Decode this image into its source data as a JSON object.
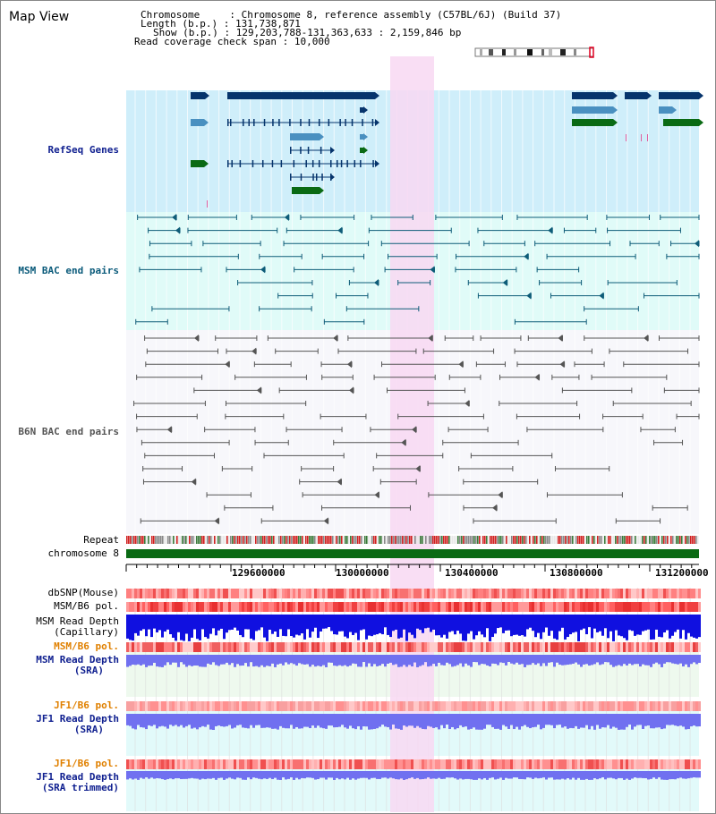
{
  "view_title": "Map View",
  "info": {
    "chromosome_label": "Chromosome",
    "chromosome_value": "Chromosome 8, reference assembly (C57BL/6J) (Build 37)",
    "length_label": "Length (b.p.)",
    "length_value": "131,738,871",
    "show_label": "Show (b.p.)",
    "show_value": "129,203,788-131,363,633 : 2,159,846 bp",
    "coverage_label": "Read coverage check span",
    "coverage_value": "10,000"
  },
  "tracks": {
    "refseq": "RefSeq Genes",
    "msm_bac": "MSM BAC end pairs",
    "b6n_bac": "B6N BAC end pairs",
    "repeat": "Repeat",
    "chromosome": "chromosome 8",
    "dbsnp": "dbSNP(Mouse)",
    "msm_b6_pol_1": "MSM/B6 pol.",
    "msm_read_depth_cap_1": "MSM Read Depth",
    "msm_read_depth_cap_2": "(Capillary)",
    "msm_b6_pol_2": "MSM/B6 pol.",
    "msm_read_depth_sra_1": "MSM Read Depth",
    "msm_read_depth_sra_2": "(SRA)",
    "jf1_b6_pol_1": "JF1/B6 pol.",
    "jf1_read_depth_1": "JF1 Read Depth",
    "jf1_read_depth_2": "(SRA)",
    "jf1_b6_pol_2": "JF1/B6 pol.",
    "jf1_read_depth_trim_1": "JF1 Read Depth",
    "jf1_read_depth_trim_2": "(SRA trimmed)"
  },
  "axis": {
    "ticks": [
      "129600000",
      "130000000",
      "130400000",
      "130800000",
      "131200000"
    ]
  },
  "colors": {
    "refseq_bg": "#cfeefa",
    "msm_bg": "#e0fbf8",
    "b6n_bg": "#f7f7fb",
    "highlight": "#f8d8f2",
    "gene_dark": "#06346c",
    "gene_light": "#4a90c0",
    "gene_green": "#0a6a14",
    "msm_line": "#0e5c78",
    "b6n_line": "#555555",
    "chrom_bar": "#0a6a14",
    "depth_blue": "#1010e0",
    "depth_light_blue": "#7070f0",
    "label_navy": "#102090",
    "label_teal": "#0a5a7a",
    "label_orange": "#e08000"
  }
}
